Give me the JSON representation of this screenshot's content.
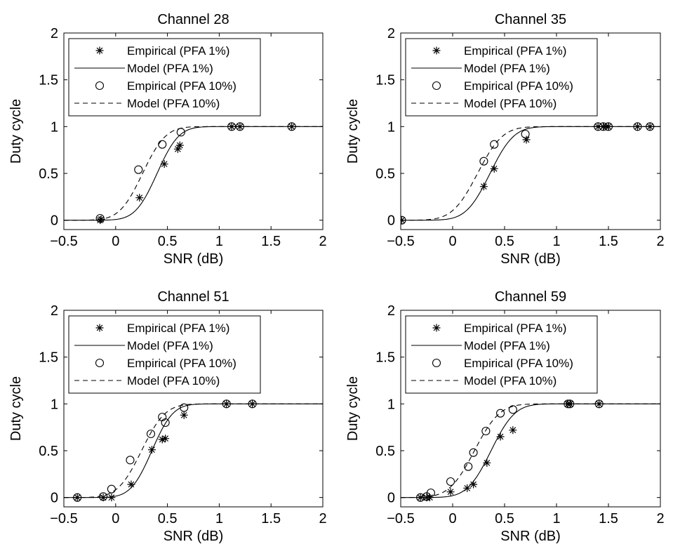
{
  "legend_labels": {
    "emp1": "Empirical (PFA 1%)",
    "mod1": "Model (PFA 1%)",
    "emp10": "Empirical (PFA 10%)",
    "mod10": "Model (PFA 10%)"
  },
  "chart_data": [
    {
      "type": "line",
      "title": "Channel 28",
      "xlabel": "SNR (dB)",
      "ylabel": "Duty cycle",
      "xlim": [
        -0.5,
        2
      ],
      "ylim": [
        -0.1,
        2
      ],
      "xticks": [
        -0.5,
        0,
        0.5,
        1,
        1.5,
        2
      ],
      "xtick_labels": [
        "−0.5",
        "0",
        "0.5",
        "1",
        "1.5",
        "2"
      ],
      "yticks": [
        0,
        0.5,
        1,
        1.5,
        2
      ],
      "ytick_labels": [
        "0",
        "0.5",
        "1",
        "1.5",
        "2"
      ],
      "legend_position": "top-left",
      "grid": false,
      "series": [
        {
          "name": "Empirical (PFA 1%)",
          "marker": "asterisk",
          "points": [
            [
              -0.15,
              0.0
            ],
            [
              -0.14,
              0.01
            ],
            [
              0.23,
              0.24
            ],
            [
              0.47,
              0.6
            ],
            [
              0.6,
              0.76
            ],
            [
              0.62,
              0.8
            ],
            [
              1.12,
              1.0
            ],
            [
              1.2,
              1.0
            ],
            [
              1.7,
              1.0
            ]
          ]
        },
        {
          "name": "Model (PFA 1%)",
          "style": "solid",
          "mu": 0.4,
          "sigma": 0.165
        },
        {
          "name": "Empirical (PFA 10%)",
          "marker": "circle",
          "points": [
            [
              -0.15,
              0.02
            ],
            [
              0.22,
              0.54
            ],
            [
              0.45,
              0.81
            ],
            [
              0.63,
              0.94
            ],
            [
              1.12,
              1.0
            ],
            [
              1.2,
              1.0
            ],
            [
              1.7,
              1.0
            ]
          ]
        },
        {
          "name": "Model (PFA 10%)",
          "style": "dashed",
          "mu": 0.26,
          "sigma": 0.175
        }
      ]
    },
    {
      "type": "line",
      "title": "Channel 35",
      "xlabel": "SNR (dB)",
      "ylabel": "Duty cycle",
      "xlim": [
        -0.5,
        2
      ],
      "ylim": [
        -0.1,
        2
      ],
      "xticks": [
        -0.5,
        0,
        0.5,
        1,
        1.5,
        2
      ],
      "xtick_labels": [
        "−0.5",
        "0",
        "0.5",
        "1",
        "1.5",
        "2"
      ],
      "yticks": [
        0,
        0.5,
        1,
        1.5,
        2
      ],
      "ytick_labels": [
        "0",
        "0.5",
        "1",
        "1.5",
        "2"
      ],
      "legend_position": "top-left",
      "grid": false,
      "series": [
        {
          "name": "Empirical (PFA 1%)",
          "marker": "asterisk",
          "points": [
            [
              -0.49,
              0.0
            ],
            [
              0.3,
              0.36
            ],
            [
              0.4,
              0.55
            ],
            [
              0.71,
              0.86
            ],
            [
              1.4,
              1.0
            ],
            [
              1.45,
              1.0
            ],
            [
              1.48,
              1.0
            ],
            [
              1.5,
              1.0
            ],
            [
              1.78,
              1.0
            ],
            [
              1.9,
              1.0
            ]
          ]
        },
        {
          "name": "Model (PFA 1%)",
          "style": "solid",
          "mu": 0.36,
          "sigma": 0.18
        },
        {
          "name": "Empirical (PFA 10%)",
          "marker": "circle",
          "points": [
            [
              -0.49,
              0.0
            ],
            [
              0.3,
              0.63
            ],
            [
              0.4,
              0.81
            ],
            [
              0.7,
              0.92
            ],
            [
              1.4,
              1.0
            ],
            [
              1.45,
              1.0
            ],
            [
              1.5,
              1.0
            ],
            [
              1.78,
              1.0
            ],
            [
              1.9,
              1.0
            ]
          ]
        },
        {
          "name": "Model (PFA 10%)",
          "style": "dashed",
          "mu": 0.24,
          "sigma": 0.19
        }
      ]
    },
    {
      "type": "line",
      "title": "Channel 51",
      "xlabel": "SNR (dB)",
      "ylabel": "Duty cycle",
      "xlim": [
        -0.5,
        2
      ],
      "ylim": [
        -0.1,
        2
      ],
      "xticks": [
        -0.5,
        0,
        0.5,
        1,
        1.5,
        2
      ],
      "xtick_labels": [
        "−0.5",
        "0",
        "0.5",
        "1",
        "1.5",
        "2"
      ],
      "yticks": [
        0,
        0.5,
        1,
        1.5,
        2
      ],
      "ytick_labels": [
        "0",
        "0.5",
        "1",
        "1.5",
        "2"
      ],
      "legend_position": "top-left",
      "grid": false,
      "series": [
        {
          "name": "Empirical (PFA 1%)",
          "marker": "asterisk",
          "points": [
            [
              -0.37,
              0.0
            ],
            [
              -0.12,
              0.0
            ],
            [
              -0.04,
              0.0
            ],
            [
              0.15,
              0.14
            ],
            [
              0.35,
              0.51
            ],
            [
              0.45,
              0.62
            ],
            [
              0.48,
              0.63
            ],
            [
              0.66,
              0.88
            ],
            [
              1.07,
              1.0
            ],
            [
              1.32,
              1.0
            ]
          ]
        },
        {
          "name": "Model (PFA 1%)",
          "style": "solid",
          "mu": 0.35,
          "sigma": 0.16
        },
        {
          "name": "Empirical (PFA 10%)",
          "marker": "circle",
          "points": [
            [
              -0.37,
              0.0
            ],
            [
              -0.12,
              0.01
            ],
            [
              -0.04,
              0.09
            ],
            [
              0.14,
              0.4
            ],
            [
              0.34,
              0.68
            ],
            [
              0.45,
              0.86
            ],
            [
              0.48,
              0.8
            ],
            [
              0.66,
              0.96
            ],
            [
              1.07,
              1.0
            ],
            [
              1.32,
              1.0
            ]
          ]
        },
        {
          "name": "Model (PFA 10%)",
          "style": "dashed",
          "mu": 0.25,
          "sigma": 0.18
        }
      ]
    },
    {
      "type": "line",
      "title": "Channel 59",
      "xlabel": "SNR (dB)",
      "ylabel": "Duty cycle",
      "xlim": [
        -0.5,
        2
      ],
      "ylim": [
        -0.1,
        2
      ],
      "xticks": [
        -0.5,
        0,
        0.5,
        1,
        1.5,
        2
      ],
      "xtick_labels": [
        "−0.5",
        "0",
        "0.5",
        "1",
        "1.5",
        "2"
      ],
      "yticks": [
        0,
        0.5,
        1,
        1.5,
        2
      ],
      "ytick_labels": [
        "0",
        "0.5",
        "1",
        "1.5",
        "2"
      ],
      "legend_position": "top-left",
      "grid": false,
      "series": [
        {
          "name": "Empirical (PFA 1%)",
          "marker": "asterisk",
          "points": [
            [
              -0.31,
              0.0
            ],
            [
              -0.25,
              0.0
            ],
            [
              -0.22,
              0.0
            ],
            [
              -0.02,
              0.06
            ],
            [
              0.14,
              0.1
            ],
            [
              0.2,
              0.14
            ],
            [
              0.33,
              0.37
            ],
            [
              0.46,
              0.65
            ],
            [
              0.58,
              0.72
            ],
            [
              1.11,
              1.0
            ],
            [
              1.13,
              1.0
            ],
            [
              1.41,
              1.0
            ]
          ]
        },
        {
          "name": "Model (PFA 1%)",
          "style": "solid",
          "mu": 0.37,
          "sigma": 0.18
        },
        {
          "name": "Empirical (PFA 10%)",
          "marker": "circle",
          "points": [
            [
              -0.31,
              0.0
            ],
            [
              -0.25,
              0.01
            ],
            [
              -0.21,
              0.05
            ],
            [
              -0.02,
              0.17
            ],
            [
              0.15,
              0.33
            ],
            [
              0.2,
              0.48
            ],
            [
              0.32,
              0.71
            ],
            [
              0.46,
              0.9
            ],
            [
              0.58,
              0.94
            ],
            [
              1.11,
              1.0
            ],
            [
              1.13,
              1.0
            ],
            [
              1.41,
              1.0
            ]
          ]
        },
        {
          "name": "Model (PFA 10%)",
          "style": "dashed",
          "mu": 0.21,
          "sigma": 0.19
        }
      ]
    }
  ]
}
